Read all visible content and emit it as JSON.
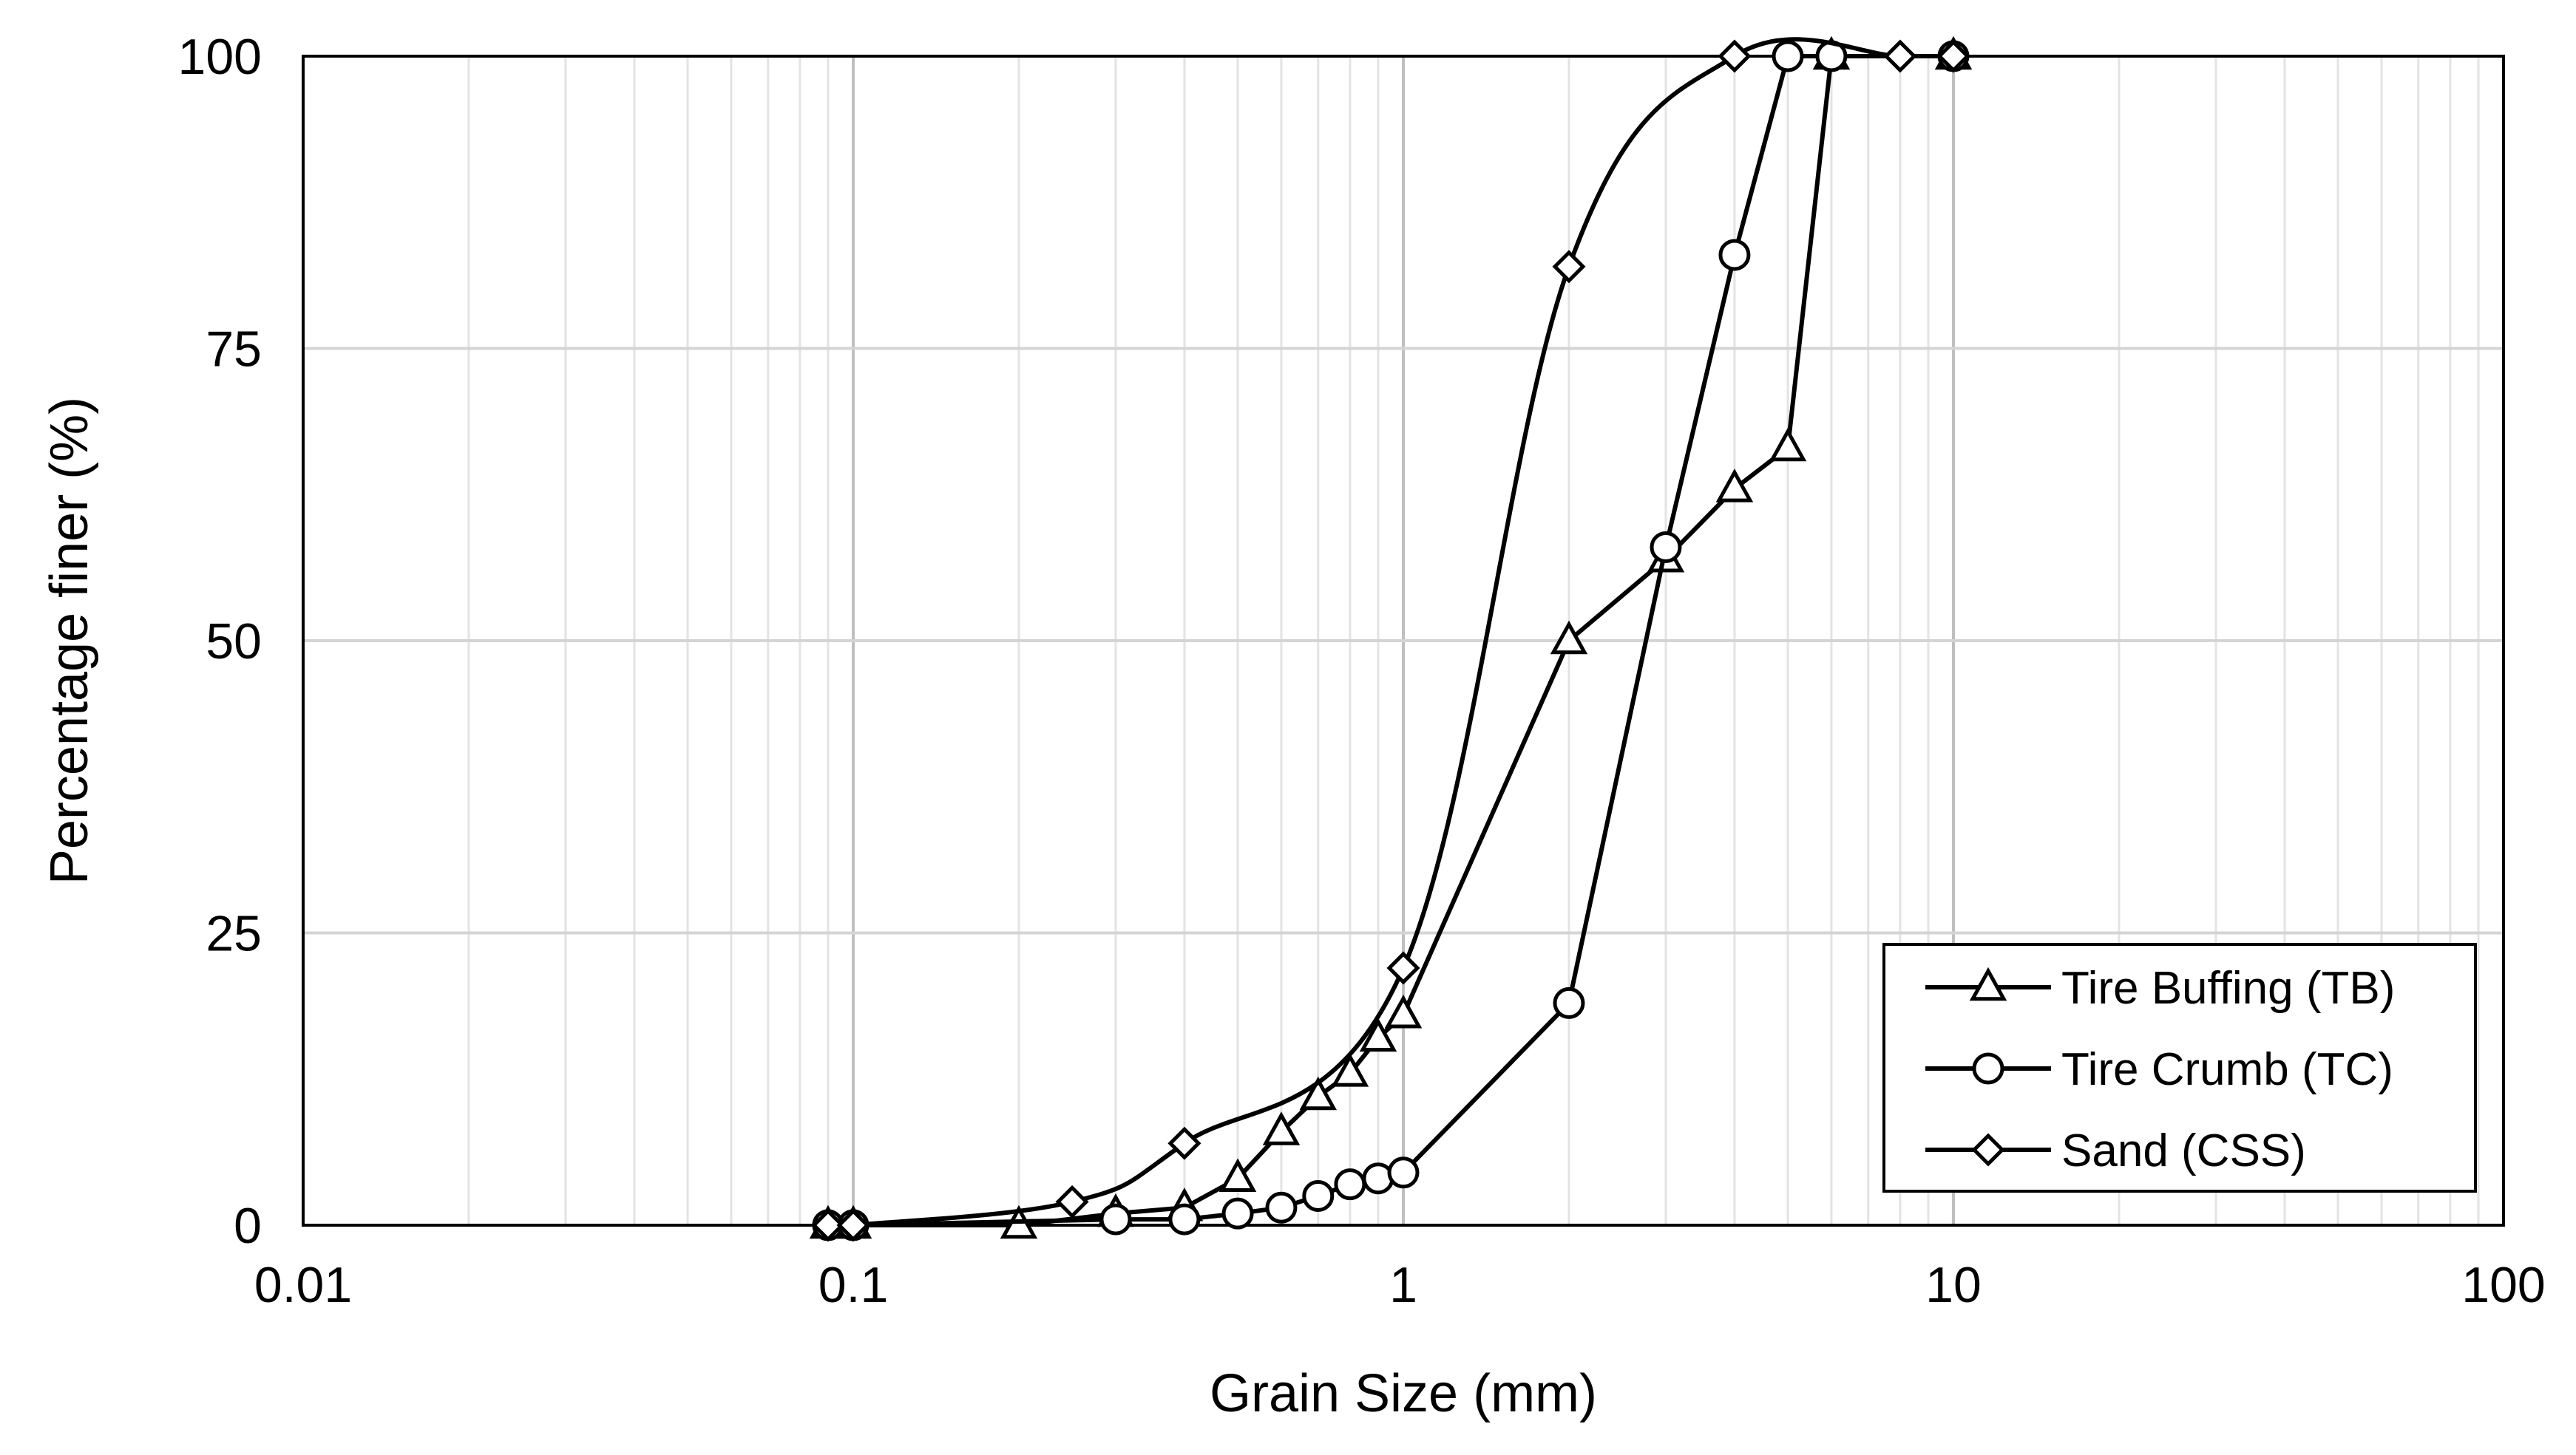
{
  "chart_data": {
    "type": "line",
    "x_scale": "log",
    "xlabel": "Grain Size (mm)",
    "ylabel": "Percentage finer (%)",
    "xlim": [
      0.01,
      100
    ],
    "ylim": [
      0,
      100
    ],
    "x_ticks": [
      0.01,
      0.1,
      1,
      10,
      100
    ],
    "x_tick_labels": [
      "0.01",
      "0.1",
      "1",
      "10",
      "100"
    ],
    "y_ticks": [
      0,
      25,
      50,
      75,
      100
    ],
    "y_tick_labels": [
      "0",
      "25",
      "50",
      "75",
      "100"
    ],
    "grid": true,
    "legend_position": "bottom-right",
    "series": [
      {
        "name": "Tire Buffing (TB)",
        "marker": "triangle",
        "smooth": false,
        "x": [
          0.09,
          0.1,
          0.2,
          0.3,
          0.4,
          0.5,
          0.6,
          0.7,
          0.8,
          0.9,
          1,
          2,
          3,
          4,
          5,
          6,
          10
        ],
        "y": [
          0,
          0,
          0,
          1,
          1.5,
          4,
          8,
          11,
          13,
          16,
          18,
          50,
          57,
          63,
          66.5,
          100,
          100
        ]
      },
      {
        "name": "Tire Crumb (TC)",
        "marker": "circle",
        "smooth": false,
        "x": [
          0.09,
          0.1,
          0.3,
          0.4,
          0.5,
          0.6,
          0.7,
          0.8,
          0.9,
          1,
          2,
          3,
          4,
          5,
          6,
          10
        ],
        "y": [
          0,
          0,
          0.5,
          0.5,
          1,
          1.5,
          2.5,
          3.5,
          4,
          4.5,
          19,
          58,
          83,
          100,
          100,
          100
        ]
      },
      {
        "name": "Sand (CSS)",
        "marker": "diamond",
        "smooth": true,
        "x": [
          0.09,
          0.1,
          0.25,
          0.4,
          1,
          2,
          4,
          8,
          10
        ],
        "y": [
          0,
          0,
          2,
          7,
          22,
          82,
          100,
          100,
          100
        ]
      }
    ]
  }
}
